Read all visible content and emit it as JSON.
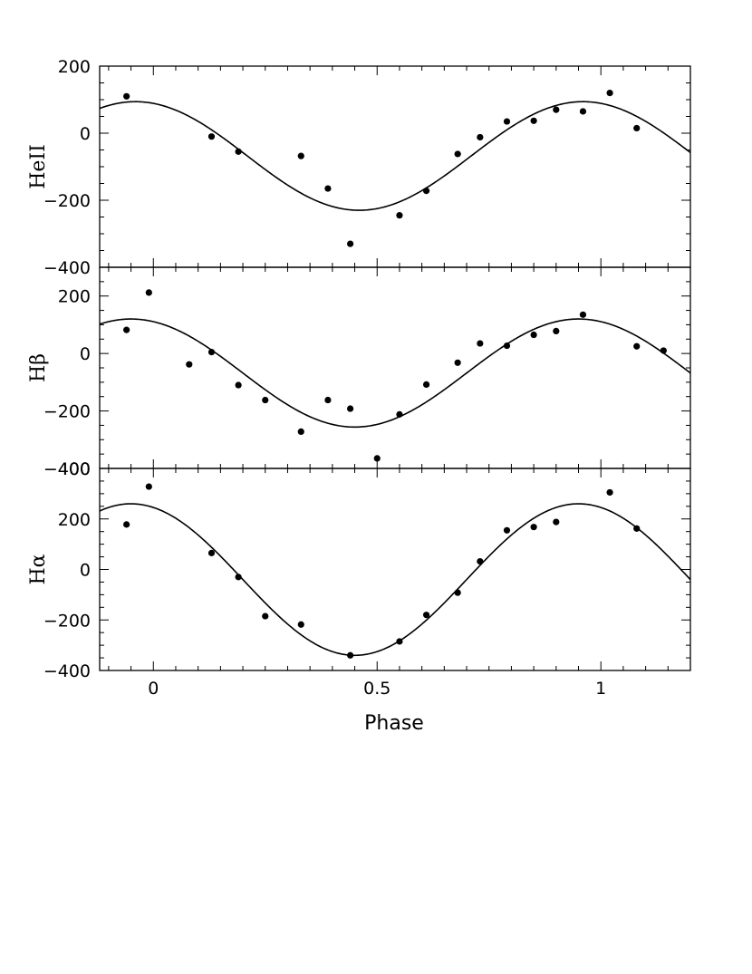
{
  "chart_data": {
    "type": "scatter",
    "layout": "stacked-panels-shared-x",
    "xlabel": "Phase",
    "xlim": [
      -0.12,
      1.2
    ],
    "x_ticks": [
      {
        "value": 0,
        "label": "0"
      },
      {
        "value": 0.5,
        "label": "0.5"
      },
      {
        "value": 1,
        "label": "1"
      }
    ],
    "grid": false,
    "panels": [
      {
        "id": "heii",
        "ylabel": "HeII",
        "ylim": [
          -400,
          200
        ],
        "y_ticks": [
          {
            "value": 200,
            "label": "200"
          },
          {
            "value": 0,
            "label": "0"
          },
          {
            "value": -200,
            "label": "−200"
          },
          {
            "value": -400,
            "label": "−400"
          }
        ],
        "fit": {
          "type": "sine",
          "offset": -68,
          "amplitude": 162,
          "phase_of_max": -0.04,
          "period": 1
        },
        "points": [
          [
            -0.06,
            110
          ],
          [
            0.13,
            -10
          ],
          [
            0.19,
            -55
          ],
          [
            0.33,
            -68
          ],
          [
            0.39,
            -165
          ],
          [
            0.44,
            -330
          ],
          [
            0.55,
            -245
          ],
          [
            0.61,
            -172
          ],
          [
            0.68,
            -62
          ],
          [
            0.73,
            -12
          ],
          [
            0.79,
            35
          ],
          [
            0.85,
            37
          ],
          [
            0.9,
            70
          ],
          [
            0.96,
            65
          ],
          [
            1.02,
            120
          ],
          [
            1.08,
            15
          ]
        ]
      },
      {
        "id": "hbeta",
        "ylabel": "Hβ",
        "ylim": [
          -400,
          300
        ],
        "y_ticks": [
          {
            "value": 200,
            "label": "200"
          },
          {
            "value": 0,
            "label": "0"
          },
          {
            "value": -200,
            "label": "−200"
          },
          {
            "value": -400,
            "label": "−400"
          }
        ],
        "fit": {
          "type": "sine",
          "offset": -68,
          "amplitude": 188,
          "phase_of_max": -0.05,
          "period": 1
        },
        "points": [
          [
            -0.06,
            82
          ],
          [
            -0.01,
            212
          ],
          [
            0.08,
            -38
          ],
          [
            0.13,
            5
          ],
          [
            0.19,
            -110
          ],
          [
            0.25,
            -162
          ],
          [
            0.33,
            -272
          ],
          [
            0.39,
            -162
          ],
          [
            0.44,
            -192
          ],
          [
            0.5,
            -365
          ],
          [
            0.55,
            -212
          ],
          [
            0.61,
            -108
          ],
          [
            0.68,
            -32
          ],
          [
            0.73,
            35
          ],
          [
            0.79,
            27
          ],
          [
            0.85,
            65
          ],
          [
            0.9,
            78
          ],
          [
            0.96,
            135
          ],
          [
            1.08,
            25
          ],
          [
            1.14,
            10
          ]
        ]
      },
      {
        "id": "halpha",
        "ylabel": "Hα",
        "ylim": [
          -400,
          400
        ],
        "y_ticks": [
          {
            "value": 400,
            "label": "400"
          },
          {
            "value": 200,
            "label": "200"
          },
          {
            "value": 0,
            "label": "0"
          },
          {
            "value": -200,
            "label": "−200"
          },
          {
            "value": -400,
            "label": "−400"
          }
        ],
        "fit": {
          "type": "sine",
          "offset": -40,
          "amplitude": 300,
          "phase_of_max": -0.05,
          "period": 1
        },
        "points": [
          [
            -0.06,
            178
          ],
          [
            -0.01,
            328
          ],
          [
            0.13,
            65
          ],
          [
            0.19,
            -30
          ],
          [
            0.25,
            -185
          ],
          [
            0.33,
            -218
          ],
          [
            0.44,
            -340
          ],
          [
            0.55,
            -285
          ],
          [
            0.61,
            -180
          ],
          [
            0.68,
            -92
          ],
          [
            0.73,
            32
          ],
          [
            0.79,
            155
          ],
          [
            0.85,
            168
          ],
          [
            0.9,
            188
          ],
          [
            1.02,
            305
          ],
          [
            1.08,
            162
          ]
        ]
      }
    ]
  }
}
